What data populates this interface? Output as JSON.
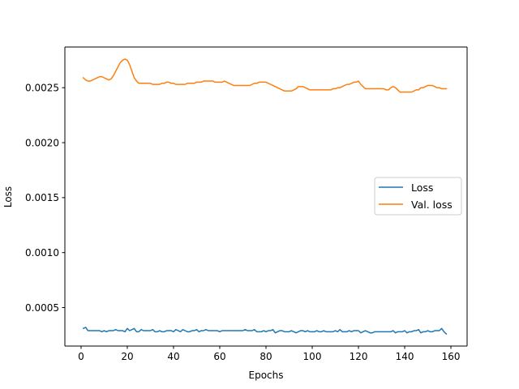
{
  "chart_data": {
    "type": "line",
    "title": "",
    "xlabel": "Epochs",
    "ylabel": "Loss",
    "xlim": [
      -7,
      167
    ],
    "ylim": [
      0.00015,
      0.00287
    ],
    "xticks": [
      0,
      20,
      40,
      60,
      80,
      100,
      120,
      140,
      160
    ],
    "yticks": [
      0.0005,
      0.001,
      0.0015,
      0.002,
      0.0025
    ],
    "ytick_labels": [
      "0.0005",
      "0.0010",
      "0.0015",
      "0.0020",
      "0.0025"
    ],
    "grid": false,
    "legend": {
      "placement": "center-right"
    },
    "series": [
      {
        "name": "Loss",
        "color": "#1f77b4",
        "x": [
          1,
          2,
          3,
          4,
          5,
          6,
          7,
          8,
          9,
          10,
          11,
          12,
          13,
          14,
          15,
          16,
          17,
          18,
          19,
          20,
          21,
          22,
          23,
          24,
          25,
          26,
          27,
          28,
          29,
          30,
          31,
          32,
          33,
          34,
          35,
          36,
          37,
          38,
          39,
          40,
          41,
          42,
          43,
          44,
          45,
          46,
          47,
          48,
          49,
          50,
          51,
          52,
          53,
          54,
          55,
          56,
          57,
          58,
          59,
          60,
          61,
          62,
          63,
          64,
          65,
          66,
          67,
          68,
          69,
          70,
          71,
          72,
          73,
          74,
          75,
          76,
          77,
          78,
          79,
          80,
          81,
          82,
          83,
          84,
          85,
          86,
          87,
          88,
          89,
          90,
          91,
          92,
          93,
          94,
          95,
          96,
          97,
          98,
          99,
          100,
          101,
          102,
          103,
          104,
          105,
          106,
          107,
          108,
          109,
          110,
          111,
          112,
          113,
          114,
          115,
          116,
          117,
          118,
          119,
          120,
          121,
          122,
          123,
          124,
          125,
          126,
          127,
          128,
          129,
          130,
          131,
          132,
          133,
          134,
          135,
          136,
          137,
          138,
          139,
          140,
          141,
          142,
          143,
          144,
          145,
          146,
          147,
          148,
          149,
          150,
          151,
          152,
          153,
          154,
          155,
          156,
          157,
          158
        ],
        "y": [
          0.00031,
          0.00032,
          0.00029,
          0.00029,
          0.00029,
          0.00029,
          0.00029,
          0.00029,
          0.00028,
          0.00029,
          0.00028,
          0.00029,
          0.00029,
          0.00029,
          0.0003,
          0.00029,
          0.00029,
          0.00029,
          0.00028,
          0.00031,
          0.00029,
          0.0003,
          0.00031,
          0.00028,
          0.00028,
          0.0003,
          0.00029,
          0.00029,
          0.00029,
          0.00029,
          0.0003,
          0.00028,
          0.00028,
          0.00029,
          0.00028,
          0.00028,
          0.00029,
          0.00029,
          0.00029,
          0.00028,
          0.0003,
          0.00029,
          0.00028,
          0.0003,
          0.00029,
          0.00028,
          0.00028,
          0.00029,
          0.00029,
          0.0003,
          0.00028,
          0.00029,
          0.00029,
          0.0003,
          0.00029,
          0.00029,
          0.00029,
          0.00029,
          0.00029,
          0.00028,
          0.00029,
          0.00029,
          0.00029,
          0.00029,
          0.00029,
          0.00029,
          0.00029,
          0.00029,
          0.00029,
          0.00029,
          0.0003,
          0.00029,
          0.00029,
          0.00029,
          0.0003,
          0.00028,
          0.00028,
          0.00028,
          0.00029,
          0.00028,
          0.00029,
          0.00029,
          0.0003,
          0.00027,
          0.00028,
          0.00029,
          0.00029,
          0.00028,
          0.00028,
          0.00028,
          0.00029,
          0.00028,
          0.00027,
          0.00028,
          0.00029,
          0.00029,
          0.00028,
          0.00029,
          0.00028,
          0.00028,
          0.00028,
          0.00029,
          0.00028,
          0.00028,
          0.00029,
          0.00028,
          0.00028,
          0.00028,
          0.00028,
          0.00029,
          0.00028,
          0.0003,
          0.00028,
          0.00028,
          0.00028,
          0.00029,
          0.00028,
          0.00029,
          0.00029,
          0.00029,
          0.00027,
          0.00028,
          0.00029,
          0.00028,
          0.00027,
          0.00027,
          0.00028,
          0.00028,
          0.00028,
          0.00028,
          0.00028,
          0.00028,
          0.00028,
          0.00028,
          0.00029,
          0.00027,
          0.00028,
          0.00028,
          0.00028,
          0.00029,
          0.00027,
          0.00028,
          0.00028,
          0.00029,
          0.00029,
          0.0003,
          0.00027,
          0.00028,
          0.00028,
          0.00029,
          0.00028,
          0.00028,
          0.00029,
          0.00029,
          0.00029,
          0.00031,
          0.00028,
          0.00026
        ]
      },
      {
        "name": "Val. loss",
        "color": "#ff7f0e",
        "x": [
          1,
          2,
          3,
          4,
          5,
          6,
          7,
          8,
          9,
          10,
          11,
          12,
          13,
          14,
          15,
          16,
          17,
          18,
          19,
          20,
          21,
          22,
          23,
          24,
          25,
          26,
          27,
          28,
          29,
          30,
          31,
          32,
          33,
          34,
          35,
          36,
          37,
          38,
          39,
          40,
          41,
          42,
          43,
          44,
          45,
          46,
          47,
          48,
          49,
          50,
          51,
          52,
          53,
          54,
          55,
          56,
          57,
          58,
          59,
          60,
          61,
          62,
          63,
          64,
          65,
          66,
          67,
          68,
          69,
          70,
          71,
          72,
          73,
          74,
          75,
          76,
          77,
          78,
          79,
          80,
          81,
          82,
          83,
          84,
          85,
          86,
          87,
          88,
          89,
          90,
          91,
          92,
          93,
          94,
          95,
          96,
          97,
          98,
          99,
          100,
          101,
          102,
          103,
          104,
          105,
          106,
          107,
          108,
          109,
          110,
          111,
          112,
          113,
          114,
          115,
          116,
          117,
          118,
          119,
          120,
          121,
          122,
          123,
          124,
          125,
          126,
          127,
          128,
          129,
          130,
          131,
          132,
          133,
          134,
          135,
          136,
          137,
          138,
          139,
          140,
          141,
          142,
          143,
          144,
          145,
          146,
          147,
          148,
          149,
          150,
          151,
          152,
          153,
          154,
          155,
          156,
          157,
          158
        ],
        "y": [
          0.00259,
          0.00257,
          0.00256,
          0.00256,
          0.00257,
          0.00258,
          0.00259,
          0.0026,
          0.0026,
          0.00259,
          0.00258,
          0.00257,
          0.00258,
          0.00261,
          0.00265,
          0.00269,
          0.00273,
          0.00275,
          0.00276,
          0.00275,
          0.00271,
          0.00265,
          0.00259,
          0.00256,
          0.00254,
          0.00254,
          0.00254,
          0.00254,
          0.00254,
          0.00254,
          0.00253,
          0.00253,
          0.00253,
          0.00253,
          0.00254,
          0.00254,
          0.00255,
          0.00255,
          0.00254,
          0.00254,
          0.00253,
          0.00253,
          0.00253,
          0.00253,
          0.00253,
          0.00254,
          0.00254,
          0.00254,
          0.00254,
          0.00255,
          0.00255,
          0.00255,
          0.00256,
          0.00256,
          0.00256,
          0.00256,
          0.00256,
          0.00255,
          0.00255,
          0.00255,
          0.00255,
          0.00256,
          0.00255,
          0.00254,
          0.00253,
          0.00252,
          0.00252,
          0.00252,
          0.00252,
          0.00252,
          0.00252,
          0.00252,
          0.00252,
          0.00253,
          0.00254,
          0.00254,
          0.00255,
          0.00255,
          0.00255,
          0.00255,
          0.00254,
          0.00253,
          0.00252,
          0.00251,
          0.0025,
          0.00249,
          0.00248,
          0.00247,
          0.00247,
          0.00247,
          0.00247,
          0.00248,
          0.00249,
          0.00251,
          0.00251,
          0.00251,
          0.0025,
          0.00249,
          0.00248,
          0.00248,
          0.00248,
          0.00248,
          0.00248,
          0.00248,
          0.00248,
          0.00248,
          0.00248,
          0.00248,
          0.00249,
          0.00249,
          0.0025,
          0.0025,
          0.00251,
          0.00252,
          0.00253,
          0.00253,
          0.00254,
          0.00255,
          0.00255,
          0.00256,
          0.00253,
          0.00251,
          0.00249,
          0.00249,
          0.00249,
          0.00249,
          0.00249,
          0.00249,
          0.00249,
          0.00249,
          0.00249,
          0.00248,
          0.00248,
          0.0025,
          0.00251,
          0.0025,
          0.00248,
          0.00246,
          0.00246,
          0.00246,
          0.00246,
          0.00246,
          0.00246,
          0.00247,
          0.00248,
          0.00248,
          0.0025,
          0.0025,
          0.00251,
          0.00252,
          0.00252,
          0.00252,
          0.00251,
          0.0025,
          0.0025,
          0.00249,
          0.00249,
          0.00249
        ]
      }
    ]
  }
}
